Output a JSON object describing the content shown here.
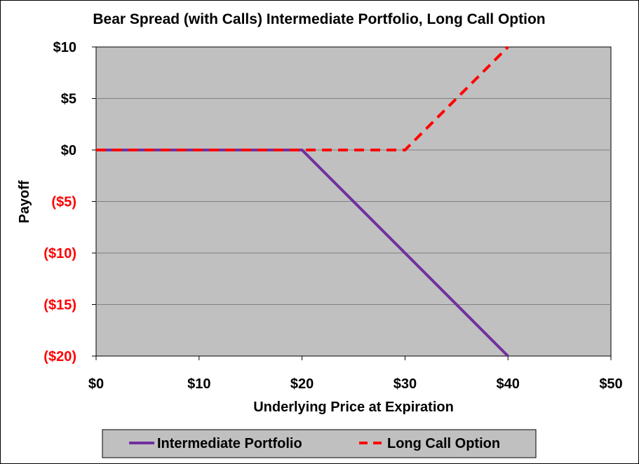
{
  "chart_data": {
    "type": "line",
    "title": "Bear Spread (with Calls) Intermediate Portfolio, Long Call Option",
    "xlabel": "Underlying Price at Expiration",
    "ylabel": "Payoff",
    "xlim": [
      0,
      50
    ],
    "ylim": [
      -20,
      10
    ],
    "x_ticks": [
      {
        "value": 0,
        "label": "$0"
      },
      {
        "value": 10,
        "label": "$10"
      },
      {
        "value": 20,
        "label": "$20"
      },
      {
        "value": 30,
        "label": "$30"
      },
      {
        "value": 40,
        "label": "$40"
      },
      {
        "value": 50,
        "label": "$50"
      }
    ],
    "y_ticks": [
      {
        "value": 10,
        "label": "$10",
        "color": "#000000"
      },
      {
        "value": 5,
        "label": "$5",
        "color": "#000000"
      },
      {
        "value": 0,
        "label": "$0",
        "color": "#000000"
      },
      {
        "value": -5,
        "label": "($5)",
        "color": "#ff0000"
      },
      {
        "value": -10,
        "label": "($10)",
        "color": "#ff0000"
      },
      {
        "value": -15,
        "label": "($15)",
        "color": "#ff0000"
      },
      {
        "value": -20,
        "label": "($20)",
        "color": "#ff0000"
      }
    ],
    "grid": "horizontal",
    "plot_background": "#c0c0c0",
    "legend_position": "bottom",
    "series": [
      {
        "name": "Intermediate Portfolio",
        "color": "#7030a0",
        "style": "solid",
        "x": [
          0,
          20,
          40
        ],
        "y": [
          0,
          0,
          -20
        ]
      },
      {
        "name": "Long Call Option",
        "color": "#ff0000",
        "style": "dashed",
        "x": [
          0,
          30,
          40
        ],
        "y": [
          0,
          0,
          10
        ]
      }
    ]
  }
}
